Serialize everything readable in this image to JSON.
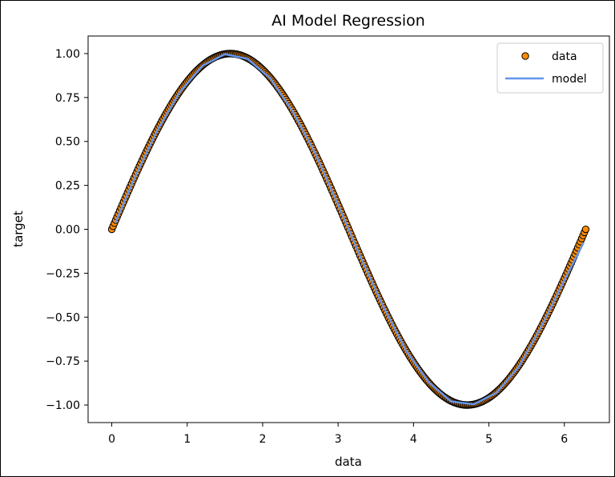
{
  "chart_data": {
    "type": "scatter",
    "title": "AI Model Regression",
    "xlabel": "data",
    "ylabel": "target",
    "xlim": [
      -0.314,
      6.597
    ],
    "ylim": [
      -1.1,
      1.1
    ],
    "xticks": [
      0,
      1,
      2,
      3,
      4,
      5,
      6
    ],
    "yticks": [
      -1.0,
      -0.75,
      -0.5,
      -0.25,
      0.0,
      0.25,
      0.5,
      0.75,
      1.0
    ],
    "xtick_labels": [
      "0",
      "1",
      "2",
      "3",
      "4",
      "5",
      "6"
    ],
    "ytick_labels": [
      "−1.00",
      "−0.75",
      "−0.50",
      "−0.25",
      "0.00",
      "0.25",
      "0.50",
      "0.75",
      "1.00"
    ],
    "grid": false,
    "legend_position": "top-right",
    "series": [
      {
        "name": "data",
        "kind": "scatter",
        "color": "#ff8c00",
        "edgecolor": "#000000",
        "function": "sin(x)",
        "x_range": [
          0,
          6.283
        ],
        "num_points": 360
      },
      {
        "name": "model",
        "kind": "line",
        "color": "#6495ed",
        "x": [
          0.05,
          0.3,
          0.6,
          0.9,
          1.2,
          1.5,
          1.8,
          2.1,
          2.4,
          2.7,
          3.0,
          3.3,
          3.6,
          3.9,
          4.2,
          4.5,
          4.8,
          5.1,
          5.4,
          5.7,
          6.0,
          6.25
        ],
        "y": [
          0.04,
          0.29,
          0.56,
          0.78,
          0.93,
          0.997,
          0.97,
          0.86,
          0.67,
          0.43,
          0.14,
          -0.16,
          -0.44,
          -0.69,
          -0.87,
          -0.98,
          -0.996,
          -0.93,
          -0.78,
          -0.55,
          -0.29,
          -0.08
        ]
      }
    ]
  }
}
